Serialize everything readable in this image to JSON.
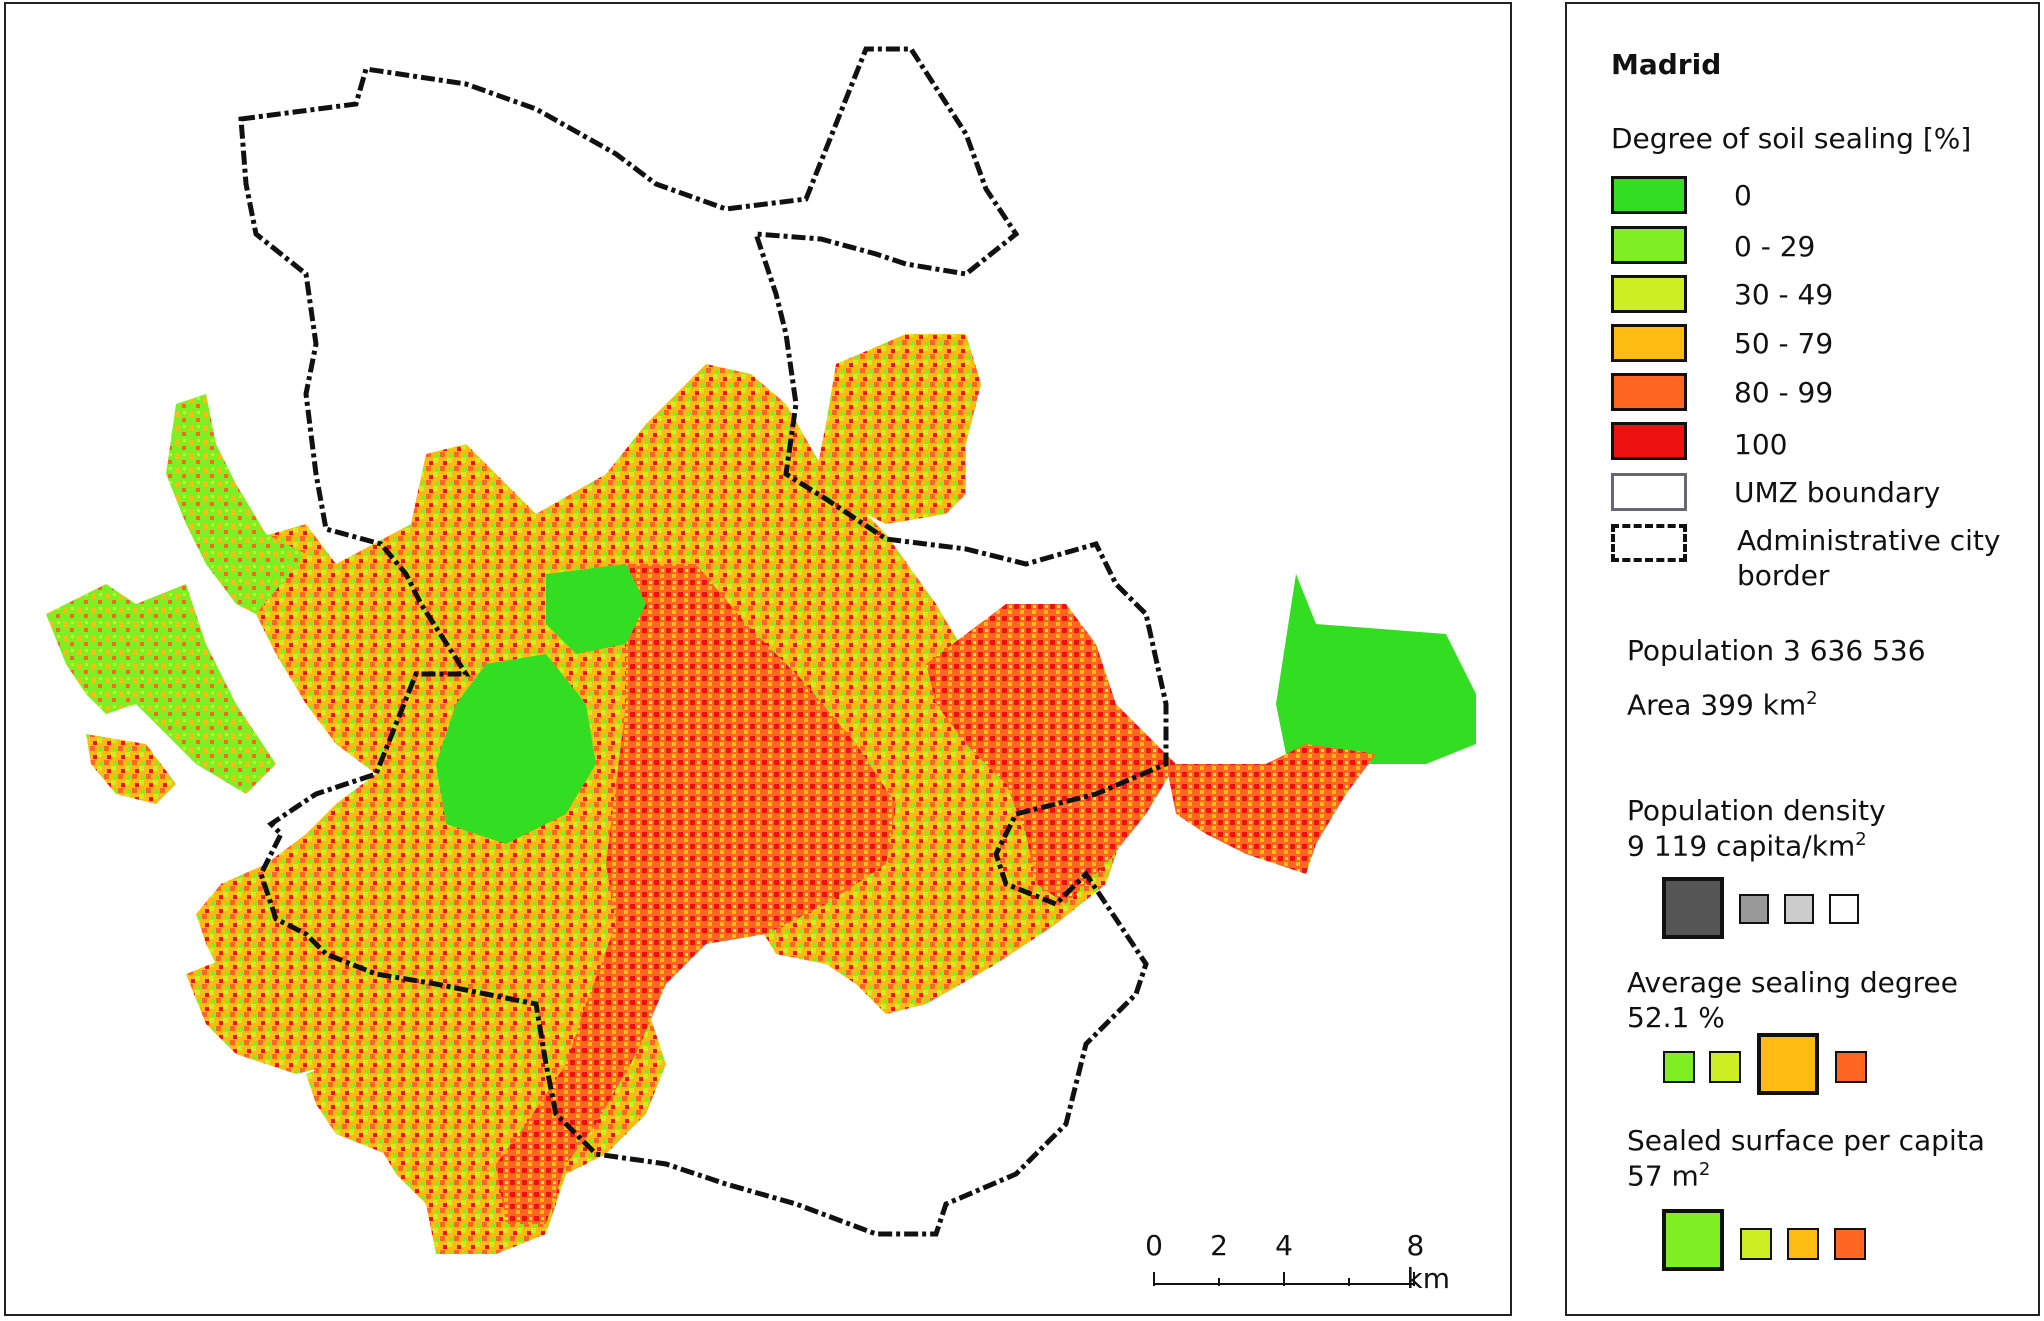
{
  "map": {
    "title": "Madrid",
    "scale_bar": {
      "ticks": [
        "0",
        "2",
        "4",
        "8 km"
      ]
    }
  },
  "legend": {
    "heading": "Degree of soil sealing [%]",
    "classes": [
      {
        "label": "0",
        "color": "#33dd22"
      },
      {
        "label": "0 - 29",
        "color": "#7fee22"
      },
      {
        "label": "30 - 49",
        "color": "#ccee22"
      },
      {
        "label": "50 - 79",
        "color": "#ffbb11"
      },
      {
        "label": "80 - 99",
        "color": "#ff6622"
      },
      {
        "label": "100",
        "color": "#ee1111"
      }
    ],
    "umz_label": "UMZ boundary",
    "admin_label_line1": "Administrative city",
    "admin_label_line2": "border"
  },
  "stats": {
    "population": "Population 3 636 536",
    "area_prefix": "Area 399 km",
    "area_sup": "2",
    "density_label": "Population density",
    "density_value_prefix": "9 119 capita/km",
    "density_value_sup": "2",
    "sealing_label": "Average sealing degree",
    "sealing_value": "52.1 %",
    "per_capita_label": "Sealed surface per capita",
    "per_capita_value_prefix": "57 m",
    "per_capita_value_sup": "2"
  },
  "colors": {
    "density_dark": "#555555",
    "density_mid": "#999999",
    "density_light": "#cccccc",
    "border": "#111111"
  }
}
